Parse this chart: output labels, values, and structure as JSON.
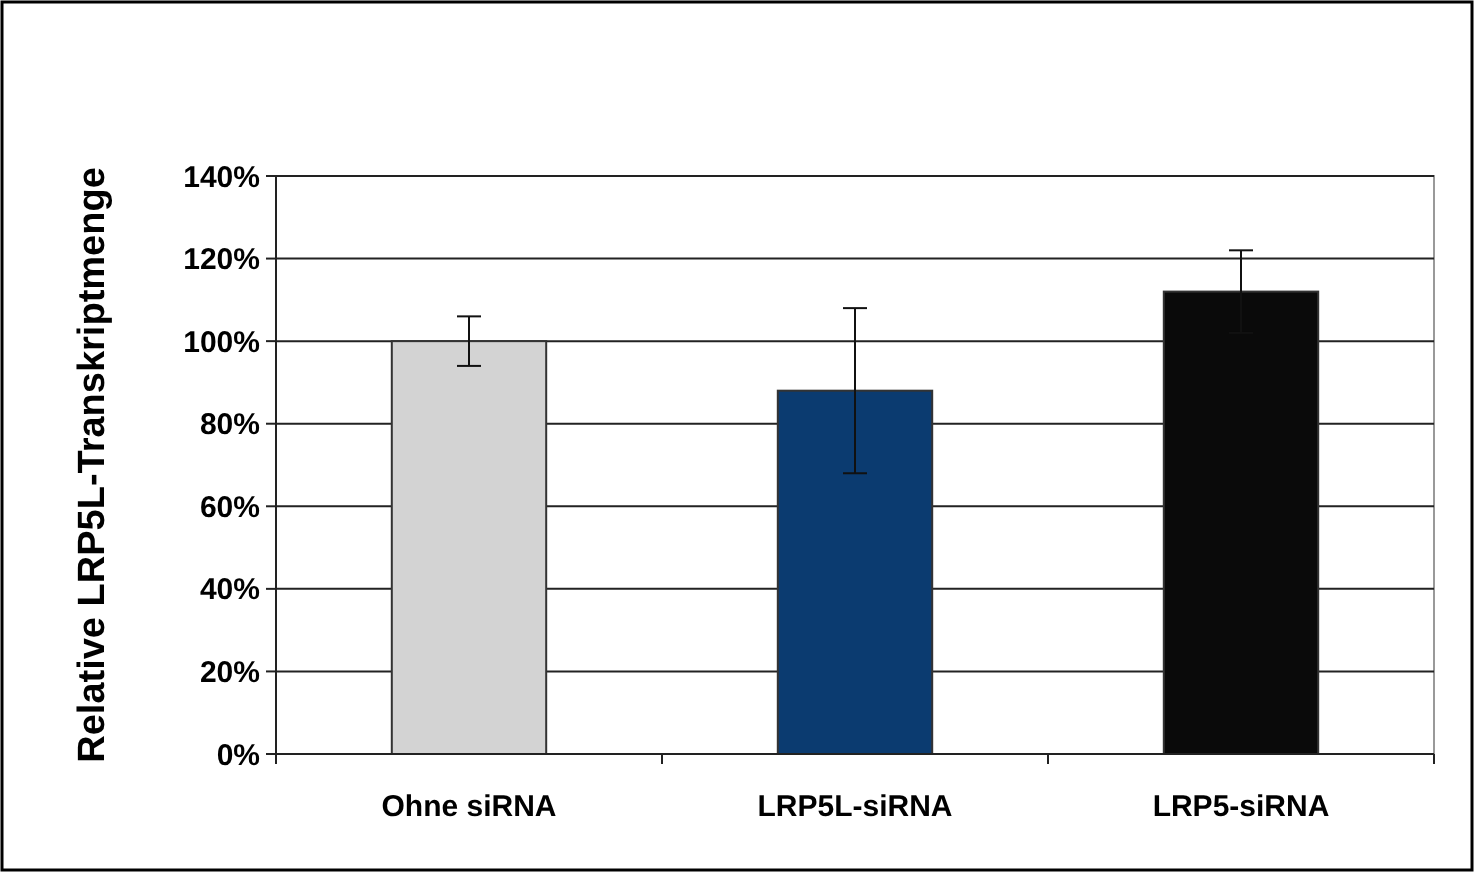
{
  "chart_data": {
    "type": "bar",
    "ylabel": "Relative LRP5L-Transkriptmenge",
    "categories": [
      "Ohne siRNA",
      "LRP5L-siRNA",
      "LRP5-siRNA"
    ],
    "values": [
      100,
      88,
      112
    ],
    "colors": [
      "#d3d3d3",
      "#0b3b70",
      "#0a0a0a"
    ],
    "errors": [
      6,
      20,
      10
    ],
    "ylim": [
      0,
      140
    ],
    "yticks": [
      {
        "value": 0,
        "label": "0%"
      },
      {
        "value": 20,
        "label": "20%"
      },
      {
        "value": 40,
        "label": "40%"
      },
      {
        "value": 60,
        "label": "60%"
      },
      {
        "value": 80,
        "label": "80%"
      },
      {
        "value": 100,
        "label": "100%"
      },
      {
        "value": 120,
        "label": "120%"
      },
      {
        "value": 140,
        "label": "140%"
      }
    ],
    "grid": "y"
  }
}
